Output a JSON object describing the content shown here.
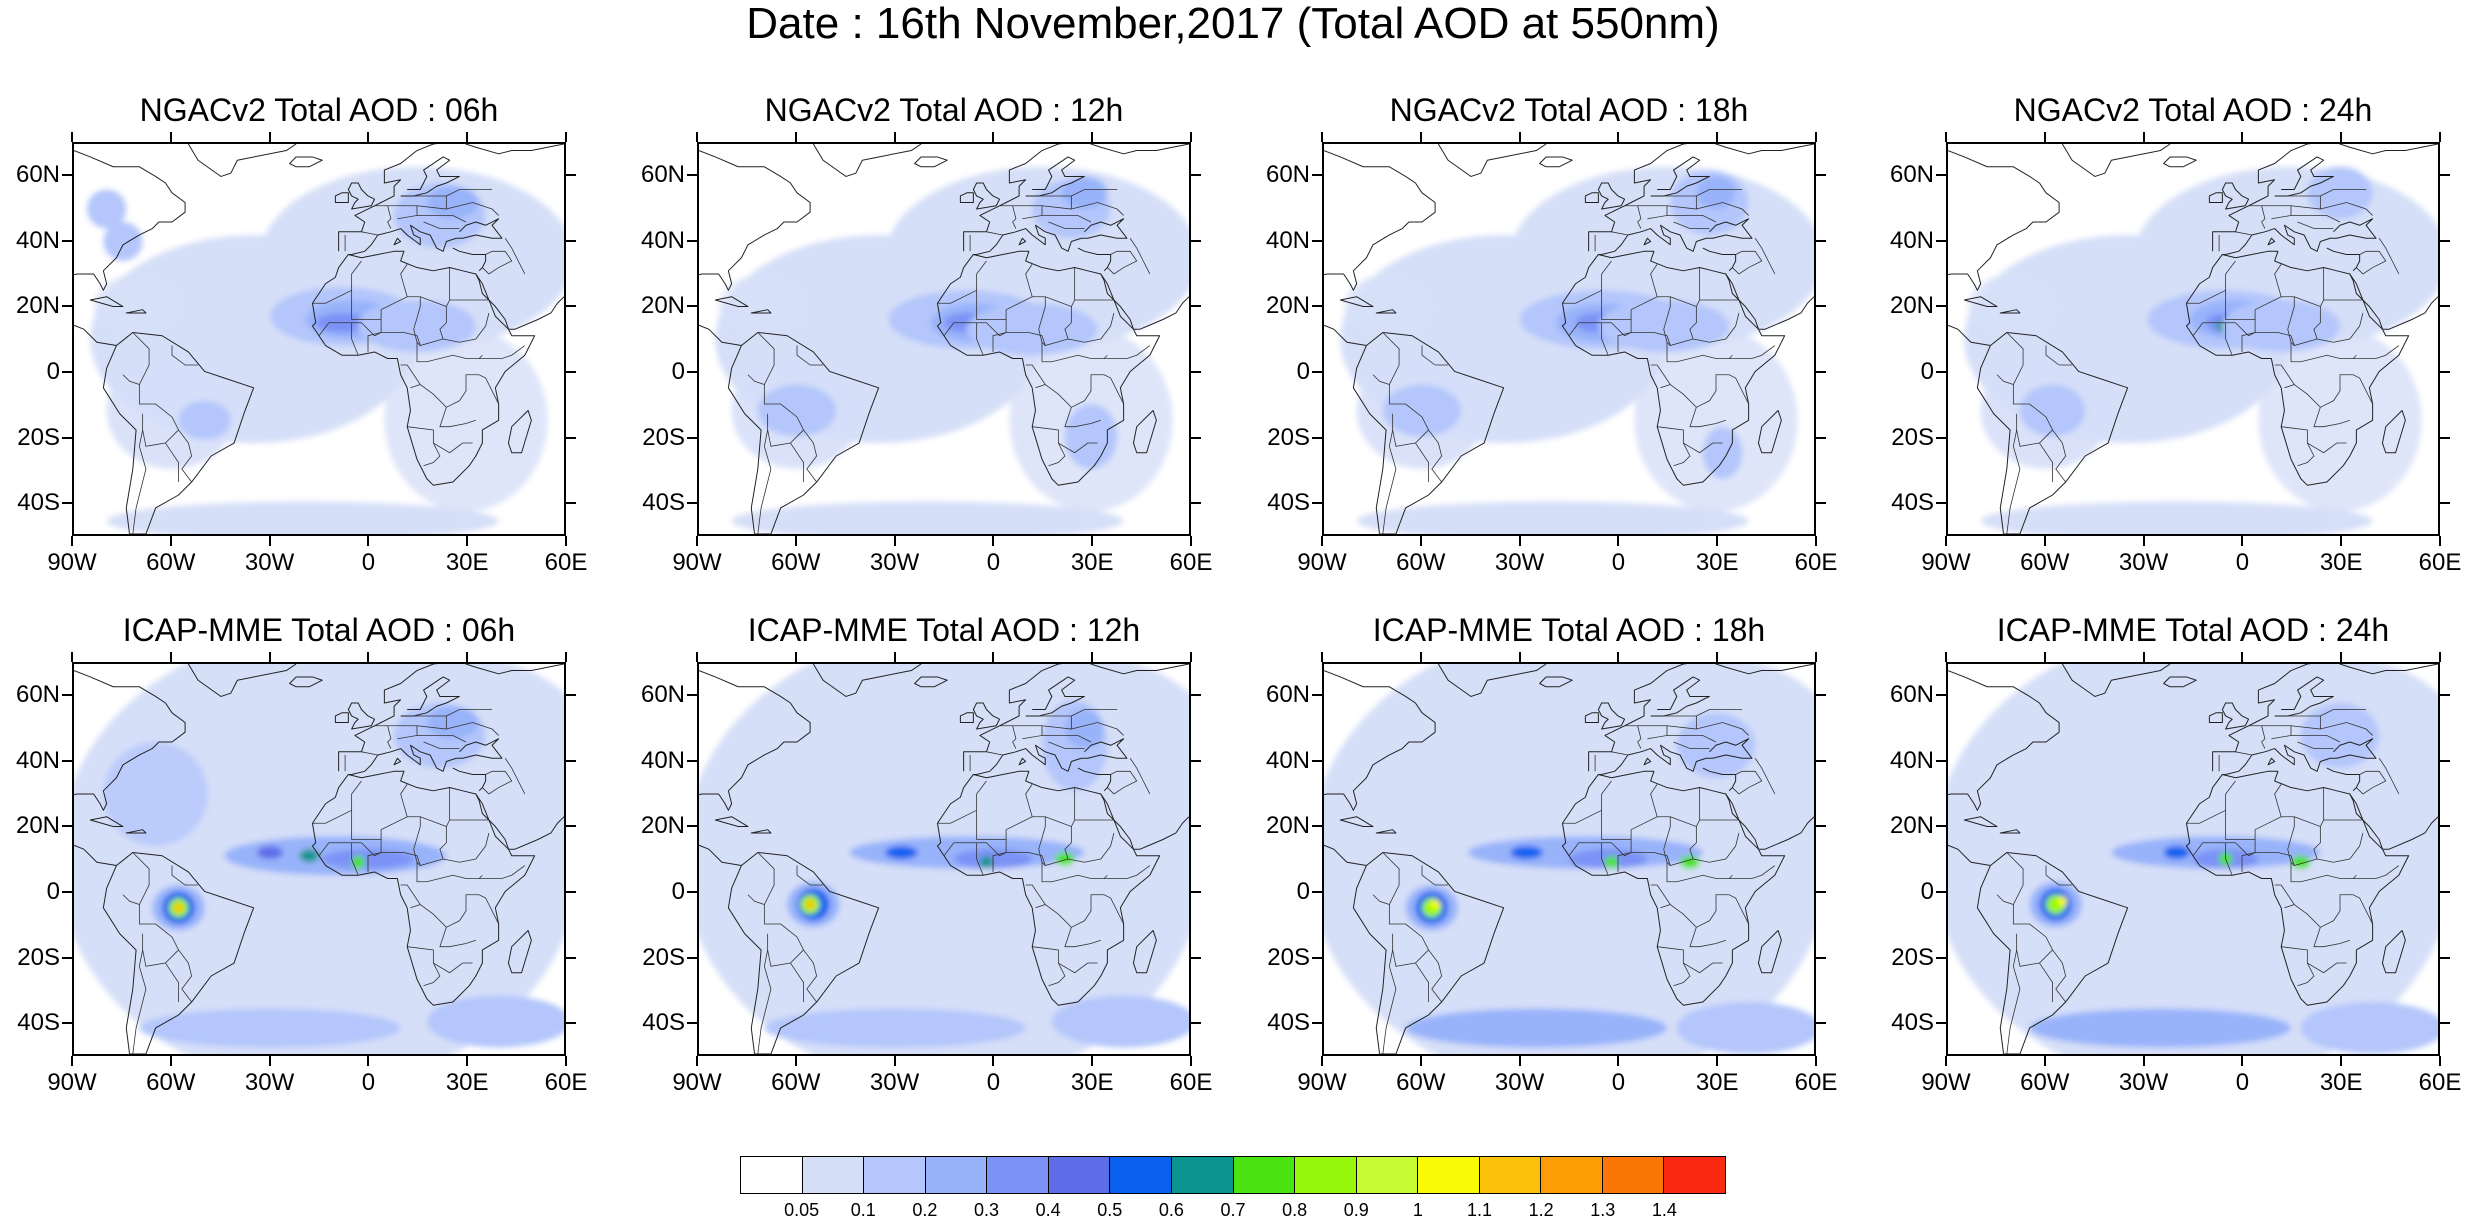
{
  "title": "Date : 16th November,2017 (Total AOD at 550nm)",
  "panels": [
    {
      "title": "NGACv2 Total AOD : 06h",
      "model": "NGACv2",
      "hour": "06h"
    },
    {
      "title": "NGACv2 Total AOD : 12h",
      "model": "NGACv2",
      "hour": "12h"
    },
    {
      "title": "NGACv2 Total AOD : 18h",
      "model": "NGACv2",
      "hour": "18h"
    },
    {
      "title": "NGACv2 Total AOD : 24h",
      "model": "NGACv2",
      "hour": "24h"
    },
    {
      "title": "ICAP-MME Total AOD : 06h",
      "model": "ICAP-MME",
      "hour": "06h"
    },
    {
      "title": "ICAP-MME Total AOD : 12h",
      "model": "ICAP-MME",
      "hour": "12h"
    },
    {
      "title": "ICAP-MME Total AOD : 18h",
      "model": "ICAP-MME",
      "hour": "18h"
    },
    {
      "title": "ICAP-MME Total AOD : 24h",
      "model": "ICAP-MME",
      "hour": "24h"
    }
  ],
  "axes": {
    "lat_labels": [
      "60N",
      "40N",
      "20N",
      "0",
      "20S",
      "40S"
    ],
    "lon_labels": [
      "90W",
      "60W",
      "30W",
      "0",
      "30E",
      "60E"
    ],
    "lat_values": [
      60,
      40,
      20,
      0,
      -20,
      -40
    ],
    "lon_values": [
      -90,
      -60,
      -30,
      0,
      30,
      60
    ],
    "lat_range": [
      -50,
      70
    ],
    "lon_range": [
      -90,
      60
    ]
  },
  "colorbar": {
    "levels": [
      "0.05",
      "0.1",
      "0.2",
      "0.3",
      "0.4",
      "0.5",
      "0.6",
      "0.7",
      "0.8",
      "0.9",
      "1",
      "1.1",
      "1.2",
      "1.3",
      "1.4"
    ],
    "colors": [
      "#ffffff",
      "#d6dff8",
      "#b4c6fb",
      "#98b3fa",
      "#7c92f6",
      "#5e6ee8",
      "#0a61f0",
      "#0a9591",
      "#4ce312",
      "#97f80e",
      "#c6fa35",
      "#fbfb06",
      "#fcc10b",
      "#fc9d06",
      "#fb7606",
      "#f92811"
    ]
  }
}
